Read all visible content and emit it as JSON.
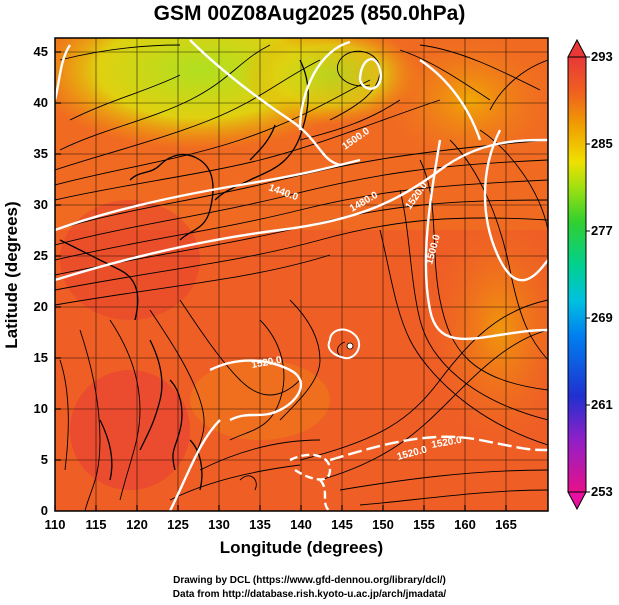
{
  "title": "GSM 00Z08Aug2025 (850.0hPa)",
  "xlabel": "Longitude (degrees)",
  "ylabel": "Latitude  (degrees)",
  "x_ticks": [
    "110",
    "115",
    "120",
    "125",
    "130",
    "135",
    "140",
    "145",
    "150",
    "155",
    "160",
    "165"
  ],
  "y_ticks": [
    "0",
    "5",
    "10",
    "15",
    "20",
    "25",
    "30",
    "35",
    "40",
    "45"
  ],
  "colorbar": {
    "ticks": [
      "293",
      "285",
      "277",
      "269",
      "261",
      "253"
    ],
    "colors": [
      "#e8106a",
      "#b020c0",
      "#3030d0",
      "#1060f0",
      "#00b0f0",
      "#00d0a0",
      "#40d040",
      "#a0e010",
      "#f0e000",
      "#f0a000",
      "#f06020",
      "#e83030"
    ]
  },
  "contour_labels": [
    "1440.0",
    "1500.0",
    "1480.0",
    "1520.0",
    "1500.0",
    "1520.0",
    "1520.0",
    "1520.0"
  ],
  "credits": {
    "line1": "Drawing by DCL (https://www.gfd-dennou.org/library/dcl/)",
    "line2": "Data from http://database.rish.kyoto-u.ac.jp/arch/jmadata/"
  }
}
